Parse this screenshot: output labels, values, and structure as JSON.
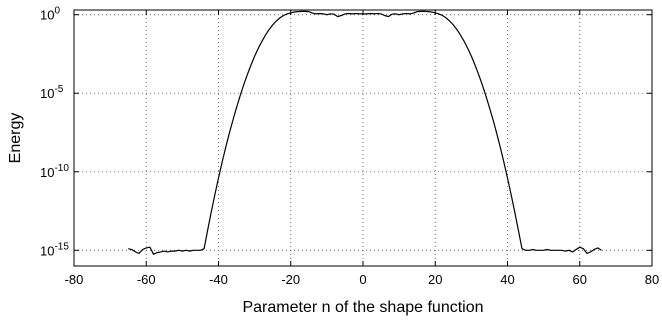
{
  "chart_data": {
    "type": "line",
    "title": "",
    "xlabel": "Parameter n of the shape function",
    "ylabel": "Energy",
    "y_scale": "log",
    "grid": true,
    "grid_style": "dotted",
    "xlim": [
      -80,
      80
    ],
    "ylim_exponent": [
      -16,
      0.3
    ],
    "x_ticks": [
      -80,
      -60,
      -40,
      -20,
      0,
      20,
      40,
      60,
      80
    ],
    "y_ticks": [
      {
        "exp": 0,
        "base": "10",
        "sup": "0"
      },
      {
        "exp": -5,
        "base": "10",
        "sup": "-5"
      },
      {
        "exp": -10,
        "base": "10",
        "sup": "-10"
      },
      {
        "exp": -15,
        "base": "10",
        "sup": "-15"
      }
    ],
    "line_color": "#000000",
    "series": [
      {
        "log10_y_note": "values below are log10(Energy)",
        "points": [
          [
            -65,
            -14.9
          ],
          [
            -64,
            -14.95
          ],
          [
            -63,
            -15.1
          ],
          [
            -62,
            -15.2
          ],
          [
            -61,
            -14.95
          ],
          [
            -60,
            -14.85
          ],
          [
            -59,
            -14.8
          ],
          [
            -58,
            -15.25
          ],
          [
            -57,
            -15.15
          ],
          [
            -56,
            -15.1
          ],
          [
            -55,
            -15.05
          ],
          [
            -54,
            -15.1
          ],
          [
            -53,
            -15.05
          ],
          [
            -52,
            -15.05
          ],
          [
            -51,
            -15.0
          ],
          [
            -50,
            -15.05
          ],
          [
            -49,
            -15.0
          ],
          [
            -48,
            -15.05
          ],
          [
            -47,
            -15.0
          ],
          [
            -46,
            -15.0
          ],
          [
            -45,
            -15.0
          ],
          [
            -44,
            -14.9
          ],
          [
            -43,
            -13.7
          ],
          [
            -42,
            -12.55
          ],
          [
            -41,
            -11.45
          ],
          [
            -40,
            -10.4
          ],
          [
            -39,
            -9.4
          ],
          [
            -38,
            -8.45
          ],
          [
            -37,
            -7.55
          ],
          [
            -36,
            -6.7
          ],
          [
            -35,
            -5.9
          ],
          [
            -34,
            -5.15
          ],
          [
            -33,
            -4.45
          ],
          [
            -32,
            -3.8
          ],
          [
            -31,
            -3.2
          ],
          [
            -30,
            -2.65
          ],
          [
            -29,
            -2.15
          ],
          [
            -28,
            -1.7
          ],
          [
            -27,
            -1.3
          ],
          [
            -26,
            -0.95
          ],
          [
            -25,
            -0.65
          ],
          [
            -24,
            -0.4
          ],
          [
            -23,
            -0.2
          ],
          [
            -22,
            -0.05
          ],
          [
            -21,
            0.05
          ],
          [
            -20,
            0.12
          ],
          [
            -19,
            0.17
          ],
          [
            -18,
            0.2
          ],
          [
            -17,
            0.21
          ],
          [
            -16,
            0.21
          ],
          [
            -15,
            0.2
          ],
          [
            -14,
            0.1
          ],
          [
            -13,
            0.05
          ],
          [
            -12,
            0.08
          ],
          [
            -11,
            0.06
          ],
          [
            -10,
            0.0
          ],
          [
            -9,
            0.06
          ],
          [
            -8,
            0.03
          ],
          [
            -7,
            -0.12
          ],
          [
            -6,
            -0.05
          ],
          [
            -5,
            0.05
          ],
          [
            -4,
            0.08
          ],
          [
            -3,
            0.05
          ],
          [
            -2,
            0.08
          ],
          [
            -1,
            0.05
          ],
          [
            0,
            0.05
          ],
          [
            1,
            0.05
          ],
          [
            2,
            0.08
          ],
          [
            3,
            0.05
          ],
          [
            4,
            0.08
          ],
          [
            5,
            0.05
          ],
          [
            6,
            -0.05
          ],
          [
            7,
            -0.12
          ],
          [
            8,
            0.03
          ],
          [
            9,
            0.06
          ],
          [
            10,
            0.0
          ],
          [
            11,
            0.06
          ],
          [
            12,
            0.08
          ],
          [
            13,
            0.05
          ],
          [
            14,
            0.1
          ],
          [
            15,
            0.2
          ],
          [
            16,
            0.21
          ],
          [
            17,
            0.21
          ],
          [
            18,
            0.2
          ],
          [
            19,
            0.17
          ],
          [
            20,
            0.12
          ],
          [
            21,
            0.05
          ],
          [
            22,
            -0.05
          ],
          [
            23,
            -0.2
          ],
          [
            24,
            -0.4
          ],
          [
            25,
            -0.65
          ],
          [
            26,
            -0.95
          ],
          [
            27,
            -1.3
          ],
          [
            28,
            -1.7
          ],
          [
            29,
            -2.15
          ],
          [
            30,
            -2.65
          ],
          [
            31,
            -3.2
          ],
          [
            32,
            -3.8
          ],
          [
            33,
            -4.45
          ],
          [
            34,
            -5.15
          ],
          [
            35,
            -5.9
          ],
          [
            36,
            -6.7
          ],
          [
            37,
            -7.55
          ],
          [
            38,
            -8.45
          ],
          [
            39,
            -9.4
          ],
          [
            40,
            -10.4
          ],
          [
            41,
            -11.45
          ],
          [
            42,
            -12.55
          ],
          [
            43,
            -13.7
          ],
          [
            44,
            -14.9
          ],
          [
            45,
            -15.0
          ],
          [
            46,
            -15.0
          ],
          [
            47,
            -14.95
          ],
          [
            48,
            -15.0
          ],
          [
            49,
            -15.0
          ],
          [
            50,
            -15.0
          ],
          [
            51,
            -14.95
          ],
          [
            52,
            -15.0
          ],
          [
            53,
            -15.0
          ],
          [
            54,
            -15.0
          ],
          [
            55,
            -15.0
          ],
          [
            56,
            -15.05
          ],
          [
            57,
            -15.0
          ],
          [
            58,
            -15.1
          ],
          [
            59,
            -14.95
          ],
          [
            60,
            -14.8
          ],
          [
            61,
            -14.9
          ],
          [
            62,
            -15.2
          ],
          [
            63,
            -15.1
          ],
          [
            64,
            -14.95
          ],
          [
            65,
            -14.85
          ],
          [
            66,
            -15.0
          ]
        ]
      }
    ]
  }
}
